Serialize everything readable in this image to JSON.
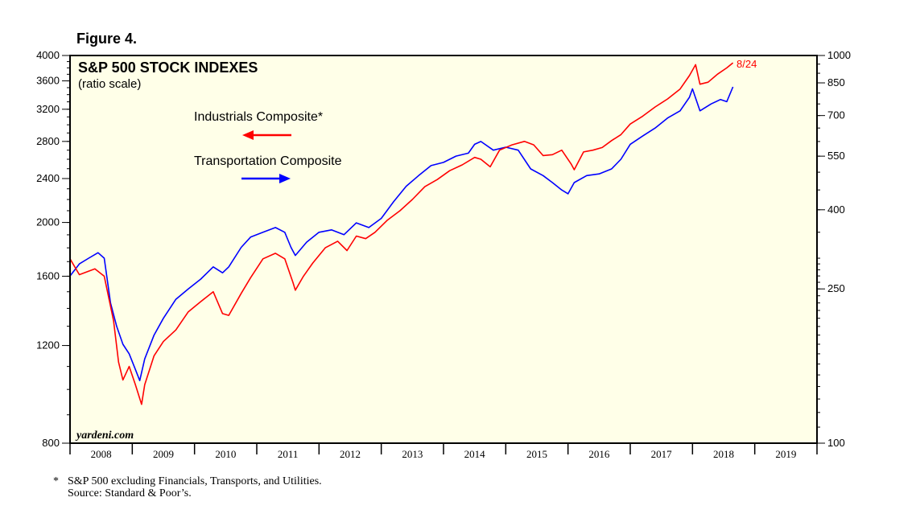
{
  "figure_label": "Figure 4.",
  "footnote": "S&P 500 excluding Financials, Transports, and Utilities.",
  "footnote_marker": "*",
  "source": "Source: Standard & Poor’s.",
  "colors": {
    "background": "#FFFFE8",
    "industrials": "#FF0000",
    "transports": "#0000FF",
    "date_label": "#FF0000"
  },
  "chart_data": {
    "type": "line",
    "title": "S&P 500 STOCK INDEXES",
    "subtitle": "(ratio scale)",
    "watermark": "yardeni.com",
    "scale": "log",
    "x_range": [
      2008.0,
      2020.0
    ],
    "x_tick_labels": [
      "2008",
      "2009",
      "2010",
      "2011",
      "2012",
      "2013",
      "2014",
      "2015",
      "2016",
      "2017",
      "2018",
      "2019"
    ],
    "left_axis": {
      "series": "Industrials Composite*",
      "ylim": [
        800,
        4000
      ],
      "ticks": [
        800,
        1200,
        1600,
        2000,
        2400,
        2800,
        3200,
        3600,
        4000
      ],
      "labels": [
        "800",
        "1200",
        "1600",
        "2000",
        "2400",
        "2800",
        "3200",
        "3600",
        "4000"
      ]
    },
    "right_axis": {
      "series": "Transportation Composite",
      "ylim": [
        100,
        1000
      ],
      "ticks": [
        100,
        250,
        400,
        550,
        700,
        850,
        1000
      ],
      "labels": [
        "100",
        "250",
        "400",
        "550",
        "700",
        "850",
        "1000"
      ]
    },
    "last_date_label": "8/24",
    "legend": [
      {
        "name": "Industrials Composite*",
        "color": "#FF0000",
        "axis": "left"
      },
      {
        "name": "Transportation Composite",
        "color": "#0000FF",
        "axis": "right"
      }
    ],
    "series": [
      {
        "name": "Industrials Composite*",
        "axis": "left",
        "color": "#FF0000",
        "x": [
          2008.0,
          2008.15,
          2008.4,
          2008.55,
          2008.7,
          2008.78,
          2008.85,
          2008.95,
          2009.05,
          2009.15,
          2009.2,
          2009.35,
          2009.5,
          2009.7,
          2009.9,
          2010.1,
          2010.3,
          2010.45,
          2010.55,
          2010.75,
          2010.9,
          2011.1,
          2011.3,
          2011.45,
          2011.58,
          2011.62,
          2011.75,
          2011.9,
          2012.1,
          2012.3,
          2012.45,
          2012.6,
          2012.75,
          2012.9,
          2013.1,
          2013.3,
          2013.5,
          2013.7,
          2013.9,
          2014.1,
          2014.3,
          2014.5,
          2014.6,
          2014.75,
          2014.9,
          2015.1,
          2015.3,
          2015.45,
          2015.6,
          2015.75,
          2015.9,
          2016.05,
          2016.1,
          2016.25,
          2016.4,
          2016.55,
          2016.7,
          2016.85,
          2017.0,
          2017.2,
          2017.4,
          2017.6,
          2017.8,
          2017.95,
          2018.05,
          2018.12,
          2018.25,
          2018.4,
          2018.55,
          2018.65
        ],
        "values": [
          1720,
          1610,
          1650,
          1600,
          1330,
          1120,
          1040,
          1100,
          1020,
          940,
          1020,
          1150,
          1220,
          1280,
          1380,
          1440,
          1500,
          1370,
          1360,
          1490,
          1590,
          1720,
          1760,
          1720,
          1560,
          1510,
          1600,
          1690,
          1800,
          1850,
          1780,
          1890,
          1870,
          1920,
          2020,
          2100,
          2200,
          2320,
          2390,
          2480,
          2540,
          2620,
          2600,
          2520,
          2700,
          2760,
          2800,
          2760,
          2640,
          2650,
          2700,
          2550,
          2490,
          2680,
          2700,
          2730,
          2810,
          2880,
          3010,
          3110,
          3230,
          3340,
          3480,
          3680,
          3850,
          3550,
          3580,
          3700,
          3800,
          3880
        ]
      },
      {
        "name": "Transportation Composite",
        "axis": "right",
        "color": "#0000FF",
        "x": [
          2008.0,
          2008.15,
          2008.3,
          2008.45,
          2008.55,
          2008.65,
          2008.75,
          2008.85,
          2008.95,
          2009.05,
          2009.12,
          2009.2,
          2009.35,
          2009.5,
          2009.7,
          2009.9,
          2010.1,
          2010.3,
          2010.45,
          2010.55,
          2010.75,
          2010.9,
          2011.1,
          2011.3,
          2011.45,
          2011.55,
          2011.62,
          2011.8,
          2012.0,
          2012.2,
          2012.4,
          2012.6,
          2012.8,
          2013.0,
          2013.2,
          2013.4,
          2013.6,
          2013.8,
          2014.0,
          2014.2,
          2014.4,
          2014.5,
          2014.6,
          2014.8,
          2015.0,
          2015.2,
          2015.4,
          2015.6,
          2015.75,
          2015.9,
          2016.0,
          2016.1,
          2016.3,
          2016.5,
          2016.7,
          2016.85,
          2017.0,
          2017.2,
          2017.4,
          2017.6,
          2017.8,
          2017.95,
          2018.0,
          2018.12,
          2018.3,
          2018.45,
          2018.55,
          2018.65
        ],
        "values": [
          270,
          290,
          300,
          310,
          300,
          230,
          200,
          180,
          170,
          155,
          145,
          165,
          190,
          210,
          235,
          250,
          265,
          285,
          275,
          285,
          320,
          340,
          350,
          360,
          350,
          320,
          305,
          330,
          350,
          355,
          345,
          370,
          360,
          380,
          420,
          460,
          490,
          520,
          530,
          550,
          560,
          590,
          600,
          570,
          580,
          570,
          510,
          490,
          470,
          450,
          440,
          470,
          490,
          495,
          510,
          540,
          590,
          620,
          650,
          690,
          720,
          780,
          820,
          720,
          750,
          770,
          760,
          830
        ]
      }
    ]
  }
}
